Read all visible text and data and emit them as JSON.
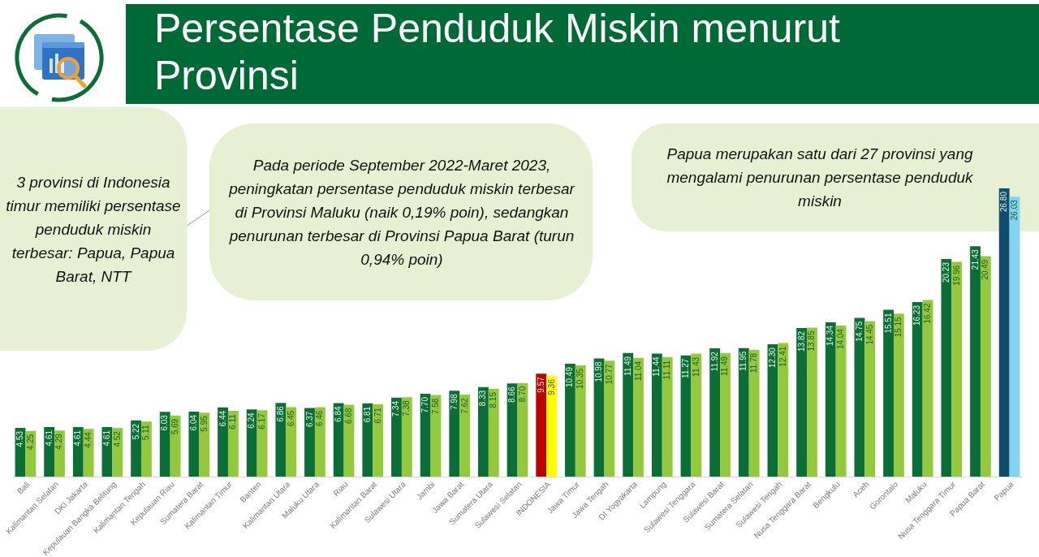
{
  "chart_data": {
    "type": "bar",
    "title": "Persentase Penduduk Miskin menurut Provinsi",
    "categories": [
      "Bali",
      "Kalimantan Selatan",
      "DKI Jakarta",
      "Kepulauan Bangka Belitung",
      "Kalimantan Tengah",
      "Kepulauan Riau",
      "Sumatera Barat",
      "Kalimantan Timur",
      "Banten",
      "Kalimantan Utara",
      "Maluku Utara",
      "Riau",
      "Kalimantan Barat",
      "Sulawesi Utara",
      "Jambi",
      "Jawa Barat",
      "Sumatera Utara",
      "Sulawesi Selatan",
      "INDONESIA",
      "Jawa Timur",
      "Jawa Tengah",
      "DI Yogyakarta",
      "Lampung",
      "Sulawesi Tenggara",
      "Sulawesi Barat",
      "Sumatera Selatan",
      "Sulawesi Tengah",
      "Nusa Tenggara Barat",
      "Bengkulu",
      "Aceh",
      "Gorontalo",
      "Maluku",
      "Nusa Tenggara Timur",
      "Papua Barat",
      "Papua"
    ],
    "series": [
      {
        "colors": [
          "#0b6e37",
          "#0b6e37",
          "#0b6e37",
          "#0b6e37",
          "#0b6e37",
          "#0b6e37",
          "#0b6e37",
          "#0b6e37",
          "#0b6e37",
          "#0b6e37",
          "#0b6e37",
          "#0b6e37",
          "#0b6e37",
          "#0b6e37",
          "#0b6e37",
          "#0b6e37",
          "#0b6e37",
          "#0b6e37",
          "#c00000",
          "#0b6e37",
          "#0b6e37",
          "#0b6e37",
          "#0b6e37",
          "#0b6e37",
          "#0b6e37",
          "#0b6e37",
          "#0b6e37",
          "#0b6e37",
          "#0b6e37",
          "#0b6e37",
          "#0b6e37",
          "#0b6e37",
          "#0b6e37",
          "#0b6e37",
          "#0e4d6e"
        ],
        "values": [
          4.53,
          4.61,
          4.61,
          4.61,
          5.22,
          6.03,
          6.04,
          6.44,
          6.24,
          6.86,
          6.37,
          6.84,
          6.81,
          7.34,
          7.7,
          7.98,
          8.33,
          8.66,
          9.57,
          10.49,
          10.98,
          11.49,
          11.44,
          11.27,
          11.92,
          11.95,
          12.3,
          13.82,
          14.34,
          14.75,
          15.51,
          16.23,
          20.23,
          21.43,
          26.8
        ],
        "value_labels": [
          "4.53",
          "4.61",
          "4.61",
          "4.61",
          "5.22",
          "6.03",
          "6.04",
          "6.44",
          "6.24",
          "6.86",
          "6.37",
          "6.84",
          "6.81",
          "7.34",
          "7.70",
          "7.98",
          "8.33",
          "8.66",
          "9.57",
          "10.49",
          "10.98",
          "11.49",
          "11.44",
          "11.27",
          "11.92",
          "11.95",
          "12.30",
          "13.82",
          "14.34",
          "14.75",
          "15.51",
          "16.23",
          "20.23",
          "21.43",
          "26.80"
        ]
      },
      {
        "colors": [
          "#95c93d",
          "#95c93d",
          "#95c93d",
          "#95c93d",
          "#95c93d",
          "#95c93d",
          "#95c93d",
          "#95c93d",
          "#95c93d",
          "#95c93d",
          "#95c93d",
          "#95c93d",
          "#95c93d",
          "#95c93d",
          "#95c93d",
          "#95c93d",
          "#95c93d",
          "#95c93d",
          "#ffff00",
          "#95c93d",
          "#95c93d",
          "#95c93d",
          "#95c93d",
          "#95c93d",
          "#95c93d",
          "#95c93d",
          "#95c93d",
          "#95c93d",
          "#95c93d",
          "#95c93d",
          "#95c93d",
          "#95c93d",
          "#95c93d",
          "#95c93d",
          "#83d3f3"
        ],
        "values": [
          4.25,
          4.29,
          4.44,
          4.52,
          5.11,
          5.69,
          5.95,
          6.11,
          6.17,
          6.45,
          6.46,
          6.68,
          6.71,
          7.38,
          7.58,
          7.62,
          8.15,
          8.7,
          9.36,
          10.35,
          10.77,
          11.04,
          11.11,
          11.43,
          11.49,
          11.78,
          12.41,
          13.85,
          14.04,
          14.45,
          15.15,
          16.42,
          19.96,
          20.49,
          26.03
        ],
        "value_labels": [
          "4.25",
          "4.29",
          "4.44",
          "4.52",
          "5.11",
          "5.69",
          "5.95",
          "6.11",
          "6.17",
          "6.45",
          "6.46",
          "6.68",
          "6.71",
          "7.38",
          "7.58",
          "7.62",
          "8.15",
          "8.70",
          "9.36",
          "10.35",
          "10.77",
          "11.04",
          "11.11",
          "11.43",
          "11.49",
          "11.78",
          "12.41",
          "13.85",
          "14.04",
          "14.45",
          "15.15",
          "16.42",
          "19.96",
          "20.49",
          "26.03"
        ]
      }
    ],
    "tick_labels": "x",
    "annotations": [
      "3 provinsi di Indonesia timur memiliki persentase penduduk miskin terbesar: Papua, Papua Barat, NTT",
      "Pada periode September 2022-Maret 2023, peningkatan persentase penduduk miskin terbesar di Provinsi Maluku (naik 0,19% poin), sedangkan penurunan terbesar di Provinsi Papua Barat (turun 0,94% poin)",
      "Papua merupakan satu dari 27 provinsi yang mengalami penurunan persentase penduduk miskin"
    ]
  }
}
